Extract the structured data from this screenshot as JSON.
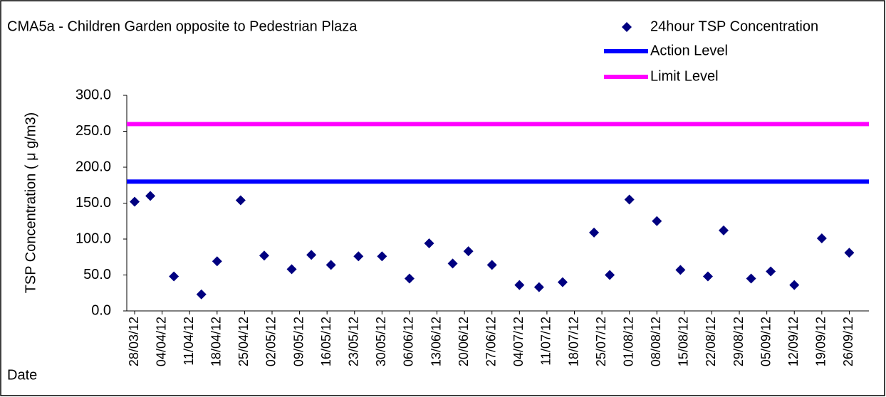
{
  "chart_data": {
    "type": "scatter",
    "title": "CMA5a - Children Garden opposite to Pedestrian Plaza",
    "x_label": "Date",
    "y_label": "TSP Concentration ( μ g/m3)",
    "x": [
      "2012-03-28",
      "2012-04-01",
      "2012-04-07",
      "2012-04-14",
      "2012-04-18",
      "2012-04-24",
      "2012-04-30",
      "2012-05-07",
      "2012-05-12",
      "2012-05-17",
      "2012-05-24",
      "2012-05-30",
      "2012-06-06",
      "2012-06-11",
      "2012-06-17",
      "2012-06-21",
      "2012-06-27",
      "2012-07-04",
      "2012-07-09",
      "2012-07-15",
      "2012-07-23",
      "2012-07-27",
      "2012-08-01",
      "2012-08-08",
      "2012-08-14",
      "2012-08-21",
      "2012-08-25",
      "2012-09-01",
      "2012-09-06",
      "2012-09-12",
      "2012-09-19",
      "2012-09-26"
    ],
    "series": [
      {
        "name": "24hour TSP Concentration",
        "color": "#000080",
        "marker": "diamond",
        "values": [
          152,
          160,
          48,
          23,
          69,
          154,
          77,
          58,
          78,
          64,
          76,
          76,
          45,
          94,
          66,
          83,
          64,
          36,
          33,
          40,
          109,
          50,
          155,
          125,
          57,
          48,
          112,
          45,
          55,
          36,
          101,
          81
        ]
      }
    ],
    "reference_lines": [
      {
        "name": "Action Level",
        "color": "#0000ff",
        "value": 180
      },
      {
        "name": "Limit Level",
        "color": "#ff00ff",
        "value": 260
      }
    ],
    "xlim": [
      "2012-03-26",
      "2012-10-01"
    ],
    "xticks": [
      {
        "value": "2012-03-28",
        "label": "28/03/12"
      },
      {
        "value": "2012-04-04",
        "label": "04/04/12"
      },
      {
        "value": "2012-04-11",
        "label": "11/04/12"
      },
      {
        "value": "2012-04-18",
        "label": "18/04/12"
      },
      {
        "value": "2012-04-25",
        "label": "25/04/12"
      },
      {
        "value": "2012-05-02",
        "label": "02/05/12"
      },
      {
        "value": "2012-05-09",
        "label": "09/05/12"
      },
      {
        "value": "2012-05-16",
        "label": "16/05/12"
      },
      {
        "value": "2012-05-23",
        "label": "23/05/12"
      },
      {
        "value": "2012-05-30",
        "label": "30/05/12"
      },
      {
        "value": "2012-06-06",
        "label": "06/06/12"
      },
      {
        "value": "2012-06-13",
        "label": "13/06/12"
      },
      {
        "value": "2012-06-20",
        "label": "20/06/12"
      },
      {
        "value": "2012-06-27",
        "label": "27/06/12"
      },
      {
        "value": "2012-07-04",
        "label": "04/07/12"
      },
      {
        "value": "2012-07-11",
        "label": "11/07/12"
      },
      {
        "value": "2012-07-18",
        "label": "18/07/12"
      },
      {
        "value": "2012-07-25",
        "label": "25/07/12"
      },
      {
        "value": "2012-08-01",
        "label": "01/08/12"
      },
      {
        "value": "2012-08-08",
        "label": "08/08/12"
      },
      {
        "value": "2012-08-15",
        "label": "15/08/12"
      },
      {
        "value": "2012-08-22",
        "label": "22/08/12"
      },
      {
        "value": "2012-08-29",
        "label": "29/08/12"
      },
      {
        "value": "2012-09-05",
        "label": "05/09/12"
      },
      {
        "value": "2012-09-12",
        "label": "12/09/12"
      },
      {
        "value": "2012-09-19",
        "label": "19/09/12"
      },
      {
        "value": "2012-09-26",
        "label": "26/09/12"
      }
    ],
    "ylim": [
      0,
      300
    ],
    "yticks": [
      {
        "value": 0,
        "label": "0.0"
      },
      {
        "value": 50,
        "label": "50.0"
      },
      {
        "value": 100,
        "label": "100.0"
      },
      {
        "value": 150,
        "label": "150.0"
      },
      {
        "value": 200,
        "label": "200.0"
      },
      {
        "value": 250,
        "label": "250.0"
      },
      {
        "value": 300,
        "label": "300.0"
      }
    ],
    "grid": false
  }
}
